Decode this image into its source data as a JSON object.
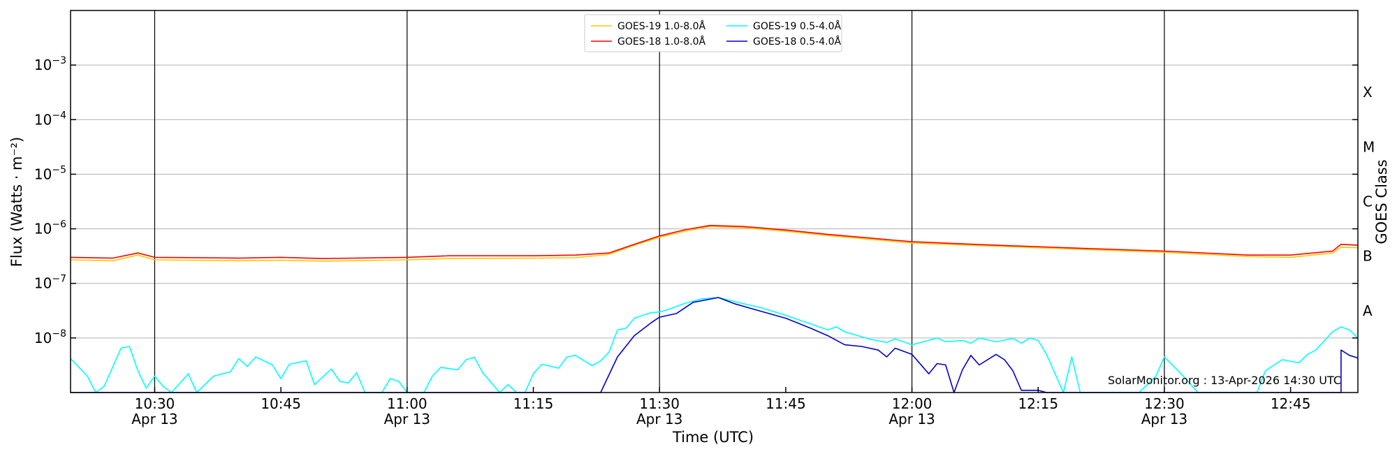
{
  "chart_data": {
    "type": "line",
    "title": "",
    "xlabel": "Time (UTC)",
    "ylabel": "Flux (Watts · m⁻²)",
    "right_axis_label": "GOES Class",
    "y_scale": "log",
    "ylim": [
      1e-09,
      0.01
    ],
    "xlim": [
      "10:20",
      "12:53"
    ],
    "grid": "horizontal at decades",
    "legend_position": "top-center",
    "watermark": "SolarMonitor.org : 13-Apr-2026 14:30 UTC",
    "x_ticks": [
      {
        "time": "10:30",
        "label": "10:30",
        "date": "Apr 13"
      },
      {
        "time": "10:45",
        "label": "10:45",
        "date": ""
      },
      {
        "time": "11:00",
        "label": "11:00",
        "date": "Apr 13"
      },
      {
        "time": "11:15",
        "label": "11:15",
        "date": ""
      },
      {
        "time": "11:30",
        "label": "11:30",
        "date": "Apr 13"
      },
      {
        "time": "11:45",
        "label": "11:45",
        "date": ""
      },
      {
        "time": "12:00",
        "label": "12:00",
        "date": "Apr 13"
      },
      {
        "time": "12:15",
        "label": "12:15",
        "date": ""
      },
      {
        "time": "12:30",
        "label": "12:30",
        "date": "Apr 13"
      },
      {
        "time": "12:45",
        "label": "12:45",
        "date": ""
      }
    ],
    "vlines": [
      "10:30",
      "11:00",
      "11:30",
      "12:00",
      "12:30"
    ],
    "y_ticks": [
      {
        "value": 1e-08,
        "label": "10",
        "exp": "−8"
      },
      {
        "value": 1e-07,
        "label": "10",
        "exp": "−7"
      },
      {
        "value": 1e-06,
        "label": "10",
        "exp": "−6"
      },
      {
        "value": 1e-05,
        "label": "10",
        "exp": "−5"
      },
      {
        "value": 0.0001,
        "label": "10",
        "exp": "−4"
      },
      {
        "value": 0.001,
        "label": "10",
        "exp": "−3"
      }
    ],
    "goes_classes": [
      {
        "label": "A",
        "value": 1e-08
      },
      {
        "label": "B",
        "value": 1e-07
      },
      {
        "label": "C",
        "value": 1e-06
      },
      {
        "label": "M",
        "value": 1e-05
      },
      {
        "label": "X",
        "value": 0.0001
      }
    ],
    "series": [
      {
        "name": "GOES-19 1.0-8.0Å",
        "color": "#ffc800",
        "points": [
          [
            "10:20",
            2.7e-07
          ],
          [
            "10:25",
            2.6e-07
          ],
          [
            "10:28",
            3.3e-07
          ],
          [
            "10:30",
            2.7e-07
          ],
          [
            "10:40",
            2.6e-07
          ],
          [
            "10:45",
            2.65e-07
          ],
          [
            "10:50",
            2.55e-07
          ],
          [
            "11:00",
            2.7e-07
          ],
          [
            "11:05",
            2.85e-07
          ],
          [
            "11:15",
            2.9e-07
          ],
          [
            "11:20",
            2.95e-07
          ],
          [
            "11:24",
            3.4e-07
          ],
          [
            "11:27",
            5e-07
          ],
          [
            "11:30",
            7e-07
          ],
          [
            "11:33",
            9e-07
          ],
          [
            "11:36",
            1.1e-06
          ],
          [
            "11:40",
            1.05e-06
          ],
          [
            "11:45",
            9e-07
          ],
          [
            "11:50",
            7.5e-07
          ],
          [
            "12:00",
            5.5e-07
          ],
          [
            "12:10",
            4.8e-07
          ],
          [
            "12:20",
            4.2e-07
          ],
          [
            "12:30",
            3.7e-07
          ],
          [
            "12:40",
            3.1e-07
          ],
          [
            "12:45",
            3e-07
          ],
          [
            "12:50",
            3.6e-07
          ],
          [
            "12:51",
            4.6e-07
          ],
          [
            "12:53",
            4.5e-07
          ]
        ]
      },
      {
        "name": "GOES-18 1.0-8.0Å",
        "color": "#ff0000",
        "points": [
          [
            "10:20",
            3e-07
          ],
          [
            "10:25",
            2.9e-07
          ],
          [
            "10:28",
            3.6e-07
          ],
          [
            "10:30",
            3e-07
          ],
          [
            "10:40",
            2.9e-07
          ],
          [
            "10:45",
            3e-07
          ],
          [
            "10:50",
            2.85e-07
          ],
          [
            "11:00",
            3e-07
          ],
          [
            "11:05",
            3.2e-07
          ],
          [
            "11:15",
            3.2e-07
          ],
          [
            "11:20",
            3.3e-07
          ],
          [
            "11:24",
            3.6e-07
          ],
          [
            "11:27",
            5.2e-07
          ],
          [
            "11:30",
            7.4e-07
          ],
          [
            "11:33",
            9.6e-07
          ],
          [
            "11:36",
            1.15e-06
          ],
          [
            "11:40",
            1.1e-06
          ],
          [
            "11:45",
            9.5e-07
          ],
          [
            "11:50",
            7.9e-07
          ],
          [
            "12:00",
            5.8e-07
          ],
          [
            "12:10",
            5e-07
          ],
          [
            "12:20",
            4.4e-07
          ],
          [
            "12:30",
            3.9e-07
          ],
          [
            "12:40",
            3.3e-07
          ],
          [
            "12:45",
            3.3e-07
          ],
          [
            "12:50",
            3.9e-07
          ],
          [
            "12:51",
            5.2e-07
          ],
          [
            "12:53",
            5e-07
          ]
        ]
      },
      {
        "name": "GOES-19 0.5-4.0Å",
        "color": "#00ffff",
        "points": [
          [
            "10:20",
            4.2e-09
          ],
          [
            "10:22",
            2e-09
          ],
          [
            "10:23",
            1e-09
          ],
          [
            "10:24",
            1.3e-09
          ],
          [
            "10:26",
            6.5e-09
          ],
          [
            "10:27",
            7e-09
          ],
          [
            "10:28",
            2.5e-09
          ],
          [
            "10:29",
            1.2e-09
          ],
          [
            "10:30",
            2e-09
          ],
          [
            "10:31",
            1.3e-09
          ],
          [
            "10:32",
            1e-09
          ],
          [
            "10:34",
            2.2e-09
          ],
          [
            "10:35",
            1e-09
          ],
          [
            "10:37",
            2e-09
          ],
          [
            "10:39",
            2.4e-09
          ],
          [
            "10:40",
            4.2e-09
          ],
          [
            "10:41",
            3e-09
          ],
          [
            "10:42",
            4.5e-09
          ],
          [
            "10:44",
            3.2e-09
          ],
          [
            "10:45",
            1.8e-09
          ],
          [
            "10:46",
            3.3e-09
          ],
          [
            "10:48",
            3.8e-09
          ],
          [
            "10:49",
            1.4e-09
          ],
          [
            "10:51",
            2.7e-09
          ],
          [
            "10:52",
            1.6e-09
          ],
          [
            "10:53",
            1.5e-09
          ],
          [
            "10:54",
            2.3e-09
          ],
          [
            "10:55",
            1e-09
          ],
          [
            "10:57",
            1e-09
          ],
          [
            "10:58",
            1.8e-09
          ],
          [
            "10:59",
            1.6e-09
          ],
          [
            "11:00",
            1e-09
          ],
          [
            "11:02",
            1e-09
          ],
          [
            "11:03",
            2e-09
          ],
          [
            "11:04",
            2.9e-09
          ],
          [
            "11:06",
            2.6e-09
          ],
          [
            "11:07",
            4e-09
          ],
          [
            "11:08",
            4.4e-09
          ],
          [
            "11:09",
            2.3e-09
          ],
          [
            "11:11",
            1e-09
          ],
          [
            "11:12",
            1.4e-09
          ],
          [
            "11:13",
            1e-09
          ],
          [
            "11:14",
            1e-09
          ],
          [
            "11:15",
            2.2e-09
          ],
          [
            "11:16",
            3.3e-09
          ],
          [
            "11:18",
            2.8e-09
          ],
          [
            "11:19",
            4.5e-09
          ],
          [
            "11:20",
            4.8e-09
          ],
          [
            "11:22",
            3.1e-09
          ],
          [
            "11:23",
            3.8e-09
          ],
          [
            "11:24",
            5.5e-09
          ],
          [
            "11:25",
            1.4e-08
          ],
          [
            "11:26",
            1.5e-08
          ],
          [
            "11:27",
            2.3e-08
          ],
          [
            "11:28",
            2.6e-08
          ],
          [
            "11:29",
            2.9e-08
          ],
          [
            "11:30",
            3e-08
          ],
          [
            "11:31",
            3.3e-08
          ],
          [
            "11:33",
            4.3e-08
          ],
          [
            "11:35",
            5.2e-08
          ],
          [
            "11:37",
            5.5e-08
          ],
          [
            "11:39",
            4.6e-08
          ],
          [
            "11:42",
            3.6e-08
          ],
          [
            "11:45",
            2.6e-08
          ],
          [
            "11:48",
            1.8e-08
          ],
          [
            "11:50",
            1.4e-08
          ],
          [
            "11:51",
            1.6e-08
          ],
          [
            "11:52",
            1.3e-08
          ],
          [
            "11:55",
            9.5e-09
          ],
          [
            "11:57",
            8.3e-09
          ],
          [
            "11:58",
            9.6e-09
          ],
          [
            "12:00",
            7.5e-09
          ],
          [
            "12:03",
            1e-08
          ],
          [
            "12:04",
            8.5e-09
          ],
          [
            "12:06",
            9e-09
          ],
          [
            "12:07",
            8e-09
          ],
          [
            "12:08",
            1e-08
          ],
          [
            "12:10",
            8.5e-09
          ],
          [
            "12:12",
            9.8e-09
          ],
          [
            "12:13",
            8e-09
          ],
          [
            "12:14",
            1e-08
          ],
          [
            "12:15",
            9e-09
          ],
          [
            "12:16",
            5e-09
          ],
          [
            "12:18",
            1e-09
          ],
          [
            "12:19",
            4.5e-09
          ],
          [
            "12:20",
            1e-09
          ],
          [
            "12:27",
            1e-09
          ],
          [
            "12:29",
            2e-09
          ],
          [
            "12:30",
            4.5e-09
          ],
          [
            "12:32",
            2.2e-09
          ],
          [
            "12:34",
            1e-09
          ],
          [
            "12:41",
            1e-09
          ],
          [
            "12:42",
            2.5e-09
          ],
          [
            "12:44",
            4e-09
          ],
          [
            "12:46",
            3.5e-09
          ],
          [
            "12:47",
            5e-09
          ],
          [
            "12:48",
            6e-09
          ],
          [
            "12:50",
            1.3e-08
          ],
          [
            "12:51",
            1.6e-08
          ],
          [
            "12:52",
            1.4e-08
          ],
          [
            "12:53",
            1e-08
          ]
        ]
      },
      {
        "name": "GOES-18 0.5-4.0Å",
        "color": "#0000cc",
        "points": [
          [
            "10:20",
            1e-09
          ],
          [
            "11:23",
            1e-09
          ],
          [
            "11:25",
            4.5e-09
          ],
          [
            "11:27",
            1.1e-08
          ],
          [
            "11:29",
            1.9e-08
          ],
          [
            "11:30",
            2.4e-08
          ],
          [
            "11:32",
            2.8e-08
          ],
          [
            "11:34",
            4.5e-08
          ],
          [
            "11:37",
            5.5e-08
          ],
          [
            "11:39",
            4.2e-08
          ],
          [
            "11:42",
            3.1e-08
          ],
          [
            "11:45",
            2.3e-08
          ],
          [
            "11:48",
            1.5e-08
          ],
          [
            "11:50",
            1.1e-08
          ],
          [
            "11:52",
            7.5e-09
          ],
          [
            "11:54",
            7e-09
          ],
          [
            "11:56",
            6e-09
          ],
          [
            "11:57",
            4.5e-09
          ],
          [
            "11:58",
            6.5e-09
          ],
          [
            "12:00",
            5e-09
          ],
          [
            "12:02",
            2.2e-09
          ],
          [
            "12:03",
            3.4e-09
          ],
          [
            "12:04",
            3.2e-09
          ],
          [
            "12:05",
            1e-09
          ],
          [
            "12:06",
            2.6e-09
          ],
          [
            "12:07",
            4.8e-09
          ],
          [
            "12:08",
            3.2e-09
          ],
          [
            "12:10",
            5e-09
          ],
          [
            "12:11",
            4e-09
          ],
          [
            "12:12",
            2.5e-09
          ],
          [
            "12:13",
            1.1e-09
          ],
          [
            "12:15",
            1.1e-09
          ],
          [
            "12:16",
            1e-09
          ],
          [
            "12:51",
            1e-09
          ],
          [
            "12:51",
            6e-09
          ],
          [
            "12:52",
            4.8e-09
          ],
          [
            "12:53",
            4.3e-09
          ]
        ]
      }
    ]
  }
}
